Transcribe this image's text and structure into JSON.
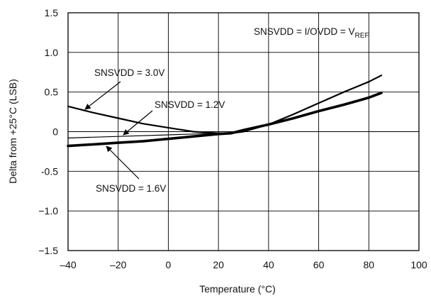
{
  "chart_data": {
    "type": "line",
    "xlabel": "Temperature (°C)",
    "ylabel": "Delta from +25°C (LSB)",
    "xlim": [
      -40,
      100
    ],
    "ylim": [
      -1.5,
      1.5
    ],
    "grid": true,
    "x_ticks": [
      "–40",
      "–20",
      "0",
      "20",
      "40",
      "60",
      "80",
      "100"
    ],
    "y_ticks": [
      "1.5",
      "1.0",
      "0.5",
      "0",
      "-0.5",
      "−1.0",
      "−1.5"
    ],
    "condition_label": {
      "prefix": "SNSVDD = I/OVDD = V",
      "subscript": "REF"
    },
    "series": [
      {
        "name": "SNSVDD = 3.0V",
        "x": [
          -40,
          -30,
          -20,
          -10,
          0,
          10,
          20,
          25,
          30,
          40,
          50,
          60,
          70,
          80,
          85
        ],
        "y": [
          0.32,
          0.24,
          0.17,
          0.1,
          0.05,
          0.0,
          -0.02,
          -0.02,
          0.0,
          0.09,
          0.22,
          0.36,
          0.5,
          0.63,
          0.71
        ]
      },
      {
        "name": "SNSVDD = 1.2V",
        "x": [
          -40,
          -20,
          0,
          10,
          20,
          25,
          30,
          40,
          50,
          60,
          70,
          80,
          85
        ],
        "y": [
          -0.08,
          -0.06,
          -0.04,
          -0.03,
          -0.02,
          -0.02,
          0.02,
          0.09,
          0.17,
          0.25,
          0.33,
          0.42,
          0.48
        ]
      },
      {
        "name": "SNSVDD = 1.6V",
        "x": [
          -40,
          -30,
          -20,
          -10,
          0,
          10,
          20,
          25,
          30,
          40,
          50,
          60,
          70,
          80,
          85
        ],
        "y": [
          -0.18,
          -0.16,
          -0.14,
          -0.12,
          -0.09,
          -0.06,
          -0.03,
          -0.02,
          0.02,
          0.09,
          0.17,
          0.26,
          0.34,
          0.43,
          0.49
        ]
      }
    ]
  }
}
